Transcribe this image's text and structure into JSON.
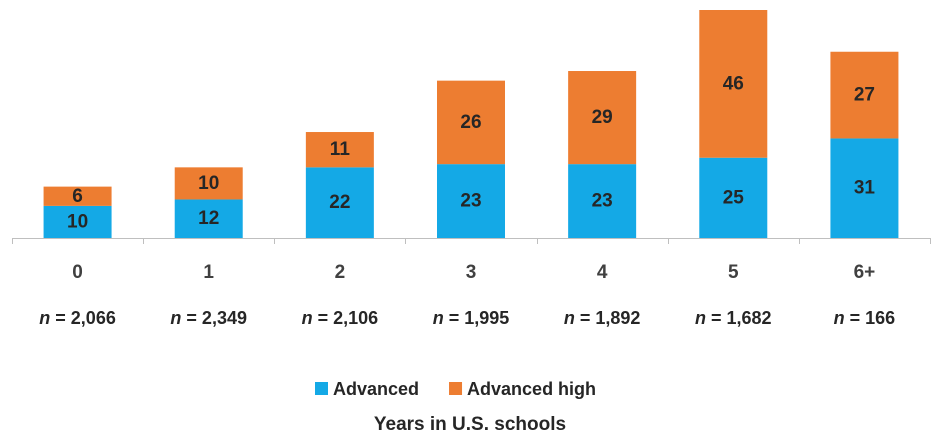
{
  "chart_data": {
    "type": "bar",
    "stacked": true,
    "categories": [
      "0",
      "1",
      "2",
      "3",
      "4",
      "5",
      "6+"
    ],
    "sample_sizes": [
      "2,066",
      "2,349",
      "2,106",
      "1,995",
      "1,892",
      "1,682",
      "166"
    ],
    "n_prefix": "n",
    "n_separator": " = ",
    "series": [
      {
        "name": "Advanced",
        "color": "#14A9E6",
        "values": [
          10,
          12,
          22,
          23,
          23,
          25,
          31
        ]
      },
      {
        "name": "Advanced high",
        "color": "#ED7D31",
        "values": [
          6,
          10,
          11,
          26,
          29,
          46,
          27
        ]
      }
    ],
    "xlabel": "Years in U.S. schools",
    "ylabel": "",
    "title": "",
    "ylim": [
      0,
      71
    ],
    "grid": false,
    "legend_position": "bottom"
  }
}
